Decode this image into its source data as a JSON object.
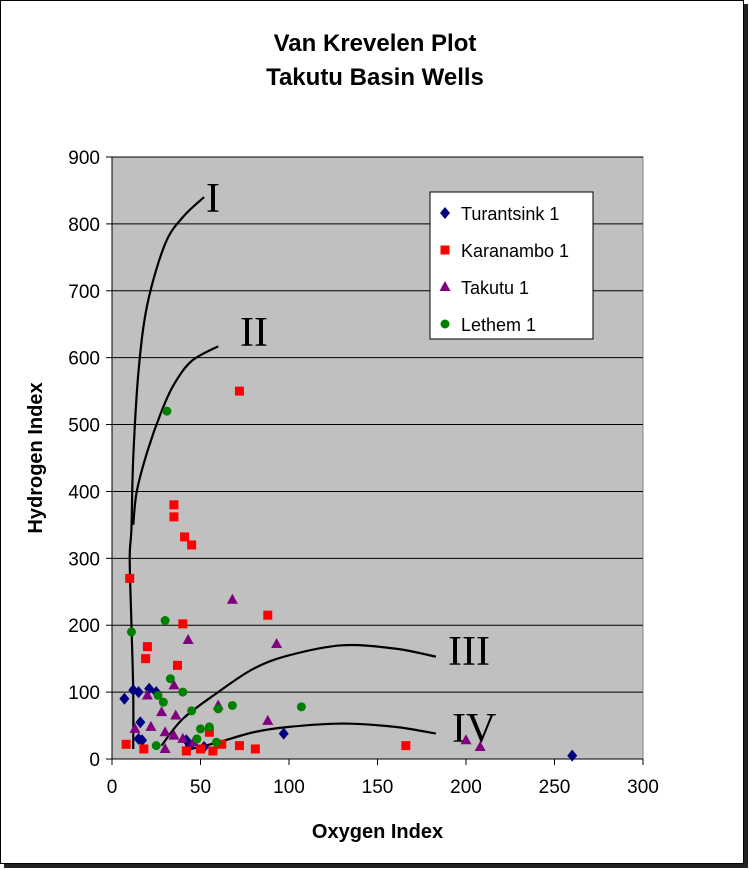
{
  "chart_data": {
    "type": "scatter",
    "title": "Van Krevelen Plot",
    "subtitle": "Takutu Basin Wells",
    "xlabel": "Oxygen Index",
    "ylabel": "Hydrogen Index",
    "xlim": [
      0,
      300
    ],
    "ylim": [
      0,
      900
    ],
    "xticks": [
      0,
      50,
      100,
      150,
      200,
      250,
      300
    ],
    "yticks": [
      0,
      100,
      200,
      300,
      400,
      500,
      600,
      700,
      800,
      900
    ],
    "grid": "horizontal",
    "legend": "top-right",
    "series": [
      {
        "name": "Turantsink 1",
        "marker": "diamond",
        "color": "#000080",
        "points": [
          [
            7,
            90
          ],
          [
            12,
            103
          ],
          [
            15,
            100
          ],
          [
            16,
            55
          ],
          [
            15,
            30
          ],
          [
            17,
            28
          ],
          [
            21,
            105
          ],
          [
            25,
            100
          ],
          [
            42,
            28
          ],
          [
            44,
            20
          ],
          [
            52,
            18
          ],
          [
            97,
            38
          ],
          [
            260,
            5
          ]
        ]
      },
      {
        "name": "Karanambo 1",
        "marker": "square",
        "color": "#ff0000",
        "points": [
          [
            10,
            270
          ],
          [
            35,
            380
          ],
          [
            35,
            362
          ],
          [
            41,
            332
          ],
          [
            45,
            320
          ],
          [
            40,
            202
          ],
          [
            20,
            168
          ],
          [
            19,
            150
          ],
          [
            37,
            140
          ],
          [
            72,
            550
          ],
          [
            88,
            215
          ],
          [
            8,
            22
          ],
          [
            18,
            15
          ],
          [
            42,
            12
          ],
          [
            50,
            15
          ],
          [
            55,
            40
          ],
          [
            57,
            12
          ],
          [
            62,
            22
          ],
          [
            72,
            20
          ],
          [
            81,
            15
          ],
          [
            166,
            20
          ]
        ]
      },
      {
        "name": "Takutu 1",
        "marker": "triangle",
        "color": "#800080",
        "points": [
          [
            68,
            238
          ],
          [
            43,
            178
          ],
          [
            93,
            172
          ],
          [
            35,
            110
          ],
          [
            20,
            95
          ],
          [
            28,
            70
          ],
          [
            36,
            65
          ],
          [
            22,
            48
          ],
          [
            13,
            45
          ],
          [
            30,
            40
          ],
          [
            35,
            35
          ],
          [
            40,
            30
          ],
          [
            46,
            25
          ],
          [
            30,
            15
          ],
          [
            60,
            80
          ],
          [
            88,
            57
          ],
          [
            200,
            28
          ],
          [
            208,
            18
          ]
        ]
      },
      {
        "name": "Lethem 1",
        "marker": "circle",
        "color": "#008000",
        "points": [
          [
            31,
            520
          ],
          [
            11,
            190
          ],
          [
            30,
            207
          ],
          [
            33,
            120
          ],
          [
            40,
            100
          ],
          [
            26,
            95
          ],
          [
            29,
            85
          ],
          [
            45,
            72
          ],
          [
            60,
            75
          ],
          [
            68,
            80
          ],
          [
            107,
            78
          ],
          [
            50,
            45
          ],
          [
            55,
            48
          ],
          [
            48,
            30
          ],
          [
            59,
            25
          ],
          [
            25,
            20
          ]
        ]
      }
    ],
    "curves": [
      {
        "label": "I",
        "points": [
          [
            12,
            15
          ],
          [
            12,
            100
          ],
          [
            11,
            200
          ],
          [
            10,
            300
          ],
          [
            11,
            345
          ],
          [
            12,
            450
          ],
          [
            15,
            580
          ],
          [
            20,
            680
          ],
          [
            30,
            770
          ],
          [
            40,
            810
          ],
          [
            52,
            840
          ]
        ]
      },
      {
        "label": "II",
        "points": [
          [
            12,
            350
          ],
          [
            14,
            400
          ],
          [
            20,
            460
          ],
          [
            28,
            520
          ],
          [
            35,
            560
          ],
          [
            45,
            595
          ],
          [
            60,
            617
          ]
        ]
      },
      {
        "label": "III",
        "points": [
          [
            28,
            20
          ],
          [
            40,
            60
          ],
          [
            60,
            100
          ],
          [
            80,
            135
          ],
          [
            100,
            155
          ],
          [
            130,
            170
          ],
          [
            160,
            165
          ],
          [
            183,
            153
          ]
        ]
      },
      {
        "label": "IV",
        "points": [
          [
            40,
            12
          ],
          [
            60,
            25
          ],
          [
            80,
            40
          ],
          [
            100,
            48
          ],
          [
            130,
            53
          ],
          [
            160,
            48
          ],
          [
            183,
            38
          ]
        ]
      }
    ]
  }
}
